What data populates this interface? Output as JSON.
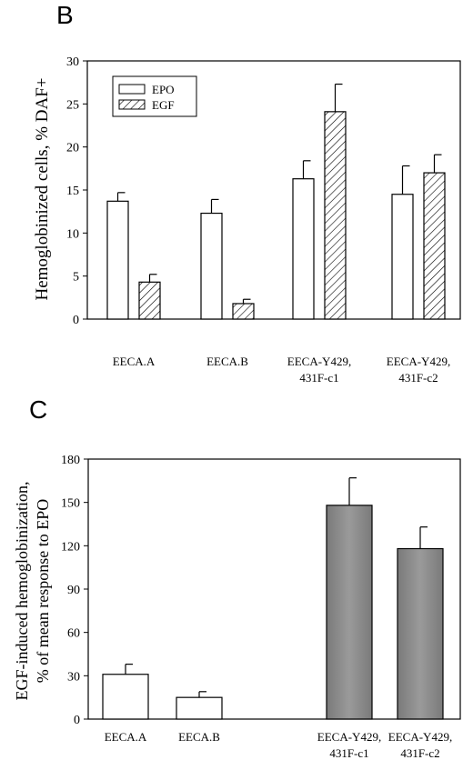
{
  "panels": [
    {
      "panel_label": "B",
      "chart_data": {
        "type": "bar",
        "title": "",
        "xlabel": "",
        "ylabel": "Hemoglobinized cells, % DAF+",
        "ylim": [
          0,
          30
        ],
        "yticks": [
          0,
          5,
          10,
          15,
          20,
          25,
          30
        ],
        "grid": false,
        "legend_position": "top-left",
        "categories": [
          [
            "EECA.A"
          ],
          [
            "EECA.B"
          ],
          [
            "EECA-Y429,",
            "431F-c1"
          ],
          [
            "EECA-Y429,",
            "431F-c2"
          ]
        ],
        "series": [
          {
            "name": "EPO",
            "fill": "white",
            "values": [
              13.7,
              12.3,
              16.3,
              14.5
            ],
            "errors": [
              1.0,
              1.6,
              2.1,
              3.3
            ]
          },
          {
            "name": "EGF",
            "fill": "hatched",
            "values": [
              4.3,
              1.8,
              24.1,
              17.0
            ],
            "errors": [
              0.9,
              0.5,
              3.2,
              2.1
            ]
          }
        ]
      }
    },
    {
      "panel_label": "C",
      "chart_data": {
        "type": "bar",
        "title": "",
        "xlabel": "",
        "ylabel": "EGF-induced hemoglobinization, % of mean response to EPO",
        "ylabel_lines": [
          "EGF-induced hemoglobinization,",
          "% of mean response to EPO"
        ],
        "ylim": [
          0,
          180
        ],
        "yticks": [
          0,
          30,
          60,
          90,
          120,
          150,
          180
        ],
        "grid": false,
        "categories": [
          [
            "EECA.A"
          ],
          [
            "EECA.B"
          ],
          [
            "EECA-Y429,",
            "431F-c1"
          ],
          [
            "EECA-Y429,",
            "431F-c2"
          ]
        ],
        "bar_colors": [
          "#ffffff",
          "#ffffff",
          "#8a8a8a",
          "#8a8a8a"
        ],
        "values": [
          31,
          15,
          148,
          118
        ],
        "errors": [
          7,
          4,
          19,
          15
        ]
      }
    }
  ]
}
